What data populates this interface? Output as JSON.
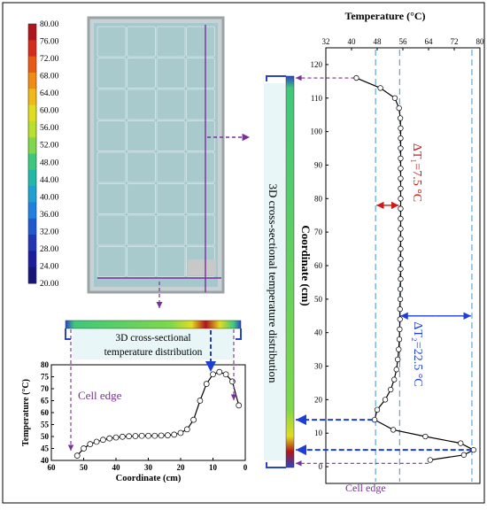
{
  "colorbar": {
    "labels": [
      "80.00",
      "76.00",
      "72.00",
      "68.00",
      "64.00",
      "60.00",
      "56.00",
      "52.00",
      "48.00",
      "44.00",
      "40.00",
      "36.00",
      "32.00",
      "28.00",
      "24.00",
      "20.00"
    ],
    "colors": [
      "#b0141c",
      "#d62a1a",
      "#e85a16",
      "#f08c12",
      "#f0b818",
      "#e0dc20",
      "#b8e030",
      "#7ed84a",
      "#3ec87c",
      "#22b8a8",
      "#1ea0d0",
      "#1e80e0",
      "#2058d0",
      "#2034b4",
      "#1c1c9c",
      "#14147a"
    ]
  },
  "colors": {
    "accent": "#7a2f9c",
    "blue_arrow": "#1e3fd6",
    "red": "#d01818",
    "dashed_blue": "#5ea8d8",
    "panel": "#b8d8dc"
  },
  "labels": {
    "cross_section_h": "3D cross-sectional temperature distribution",
    "cross_section_v": "3D cross-sectional temperature distribution",
    "cell_edge_left": "Cell edge",
    "cell_edge_right": "Cell edge",
    "delta_t1": "ΔT₁=7.5 °C",
    "delta_t2": "ΔT₂=22.5 °C"
  },
  "chart_data": [
    {
      "type": "line",
      "xlabel": "Coordinate (cm)",
      "ylabel": "Temperature (°C)",
      "xlim": [
        60,
        0
      ],
      "ylim": [
        40,
        80
      ],
      "xticks": [
        60,
        50,
        40,
        30,
        20,
        10,
        0
      ],
      "yticks": [
        40,
        45,
        50,
        55,
        60,
        65,
        70,
        75,
        80
      ],
      "x": [
        52,
        50,
        48,
        46,
        44,
        42,
        40,
        38,
        36,
        34,
        32,
        30,
        28,
        26,
        24,
        22,
        20,
        18,
        16,
        14,
        12,
        10,
        8,
        6,
        4,
        2
      ],
      "y": [
        42,
        45,
        46.8,
        47.8,
        48.6,
        49.2,
        49.6,
        49.9,
        50.1,
        50.2,
        50.3,
        50.3,
        50.3,
        50.4,
        50.5,
        50.8,
        51.5,
        53,
        57,
        65,
        72,
        76,
        77,
        76,
        73,
        63
      ]
    },
    {
      "type": "line",
      "xlabel": "Temperature (°C)",
      "ylabel": "Coordinate (cm)",
      "xlim": [
        32,
        80
      ],
      "ylim": [
        -5,
        125
      ],
      "xticks": [
        32,
        40,
        48,
        56,
        64,
        72,
        80
      ],
      "yticks": [
        0,
        10,
        20,
        30,
        40,
        50,
        60,
        70,
        80,
        90,
        100,
        110,
        120
      ],
      "dashed_temps": [
        47.5,
        55,
        77.5
      ],
      "x": [
        41.5,
        49,
        53.5,
        54.8,
        55.2,
        55.3,
        55.3,
        55.3,
        55.3,
        55.3,
        55.3,
        55.3,
        55.3,
        55.3,
        55.3,
        55.3,
        55.3,
        55.3,
        55.3,
        55.3,
        55.3,
        55.2,
        55.2,
        55.1,
        55.1,
        55.0,
        54.9,
        54.7,
        54.4,
        54.0,
        53.3,
        52.2,
        50.5,
        48.0,
        47.2,
        53.0,
        63.0,
        74.0,
        78.0,
        75.0,
        64.5
      ],
      "y": [
        116,
        113,
        110,
        107,
        104,
        101,
        98,
        95,
        92,
        89,
        86,
        83,
        80,
        77,
        74,
        71,
        68,
        65,
        62,
        59,
        56,
        53,
        50,
        47,
        44,
        41,
        38,
        35,
        32,
        29,
        26,
        23,
        20,
        17,
        14,
        11,
        9,
        7,
        5,
        3.5,
        2
      ]
    }
  ]
}
